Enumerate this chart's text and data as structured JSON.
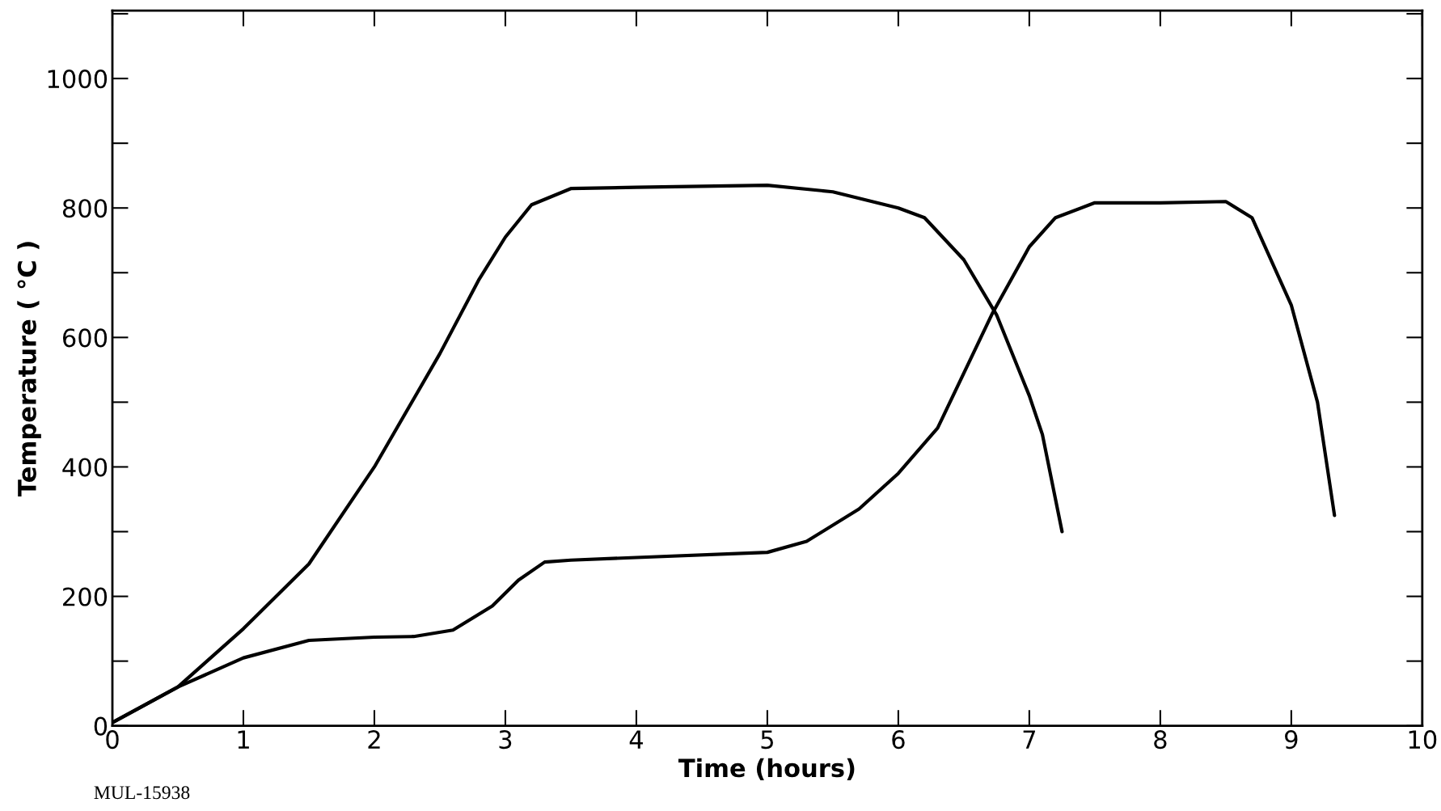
{
  "chart_data": {
    "type": "line",
    "xlabel": "Time (hours)",
    "ylabel": "Temperature ( °C )",
    "annotations": [
      "MUL-15938"
    ],
    "xlim": [
      0,
      10
    ],
    "ylim": [
      0,
      1105
    ],
    "xticks": [
      0,
      1,
      2,
      3,
      4,
      5,
      6,
      7,
      8,
      9,
      10
    ],
    "yticks": [
      0,
      200,
      400,
      600,
      800,
      1000
    ],
    "grid": false,
    "marker": "none",
    "line_style": "solid",
    "series": [
      {
        "color": "#000000",
        "x": [
          0,
          0.5,
          1,
          1.5,
          2,
          2.5,
          2.8,
          3.0,
          3.2,
          3.5,
          4,
          5,
          5.5,
          6,
          6.2,
          6.5,
          6.75,
          7.0,
          7.1,
          7.25
        ],
        "values": [
          5,
          60,
          150,
          250,
          400,
          575,
          690,
          755,
          805,
          830,
          832,
          835,
          825,
          800,
          785,
          720,
          635,
          510,
          450,
          300
        ]
      },
      {
        "color": "#000000",
        "x": [
          0,
          0.5,
          1,
          1.5,
          2,
          2.3,
          2.6,
          2.9,
          3.1,
          3.3,
          3.5,
          4,
          5,
          5.3,
          5.7,
          6,
          6.3,
          6.72,
          7,
          7.2,
          7.5,
          8,
          8.5,
          8.7,
          9,
          9.2,
          9.33
        ],
        "values": [
          5,
          60,
          105,
          132,
          137,
          138,
          148,
          185,
          225,
          253,
          256,
          260,
          268,
          285,
          335,
          390,
          460,
          638,
          740,
          785,
          808,
          808,
          810,
          785,
          650,
          500,
          325
        ]
      }
    ]
  }
}
